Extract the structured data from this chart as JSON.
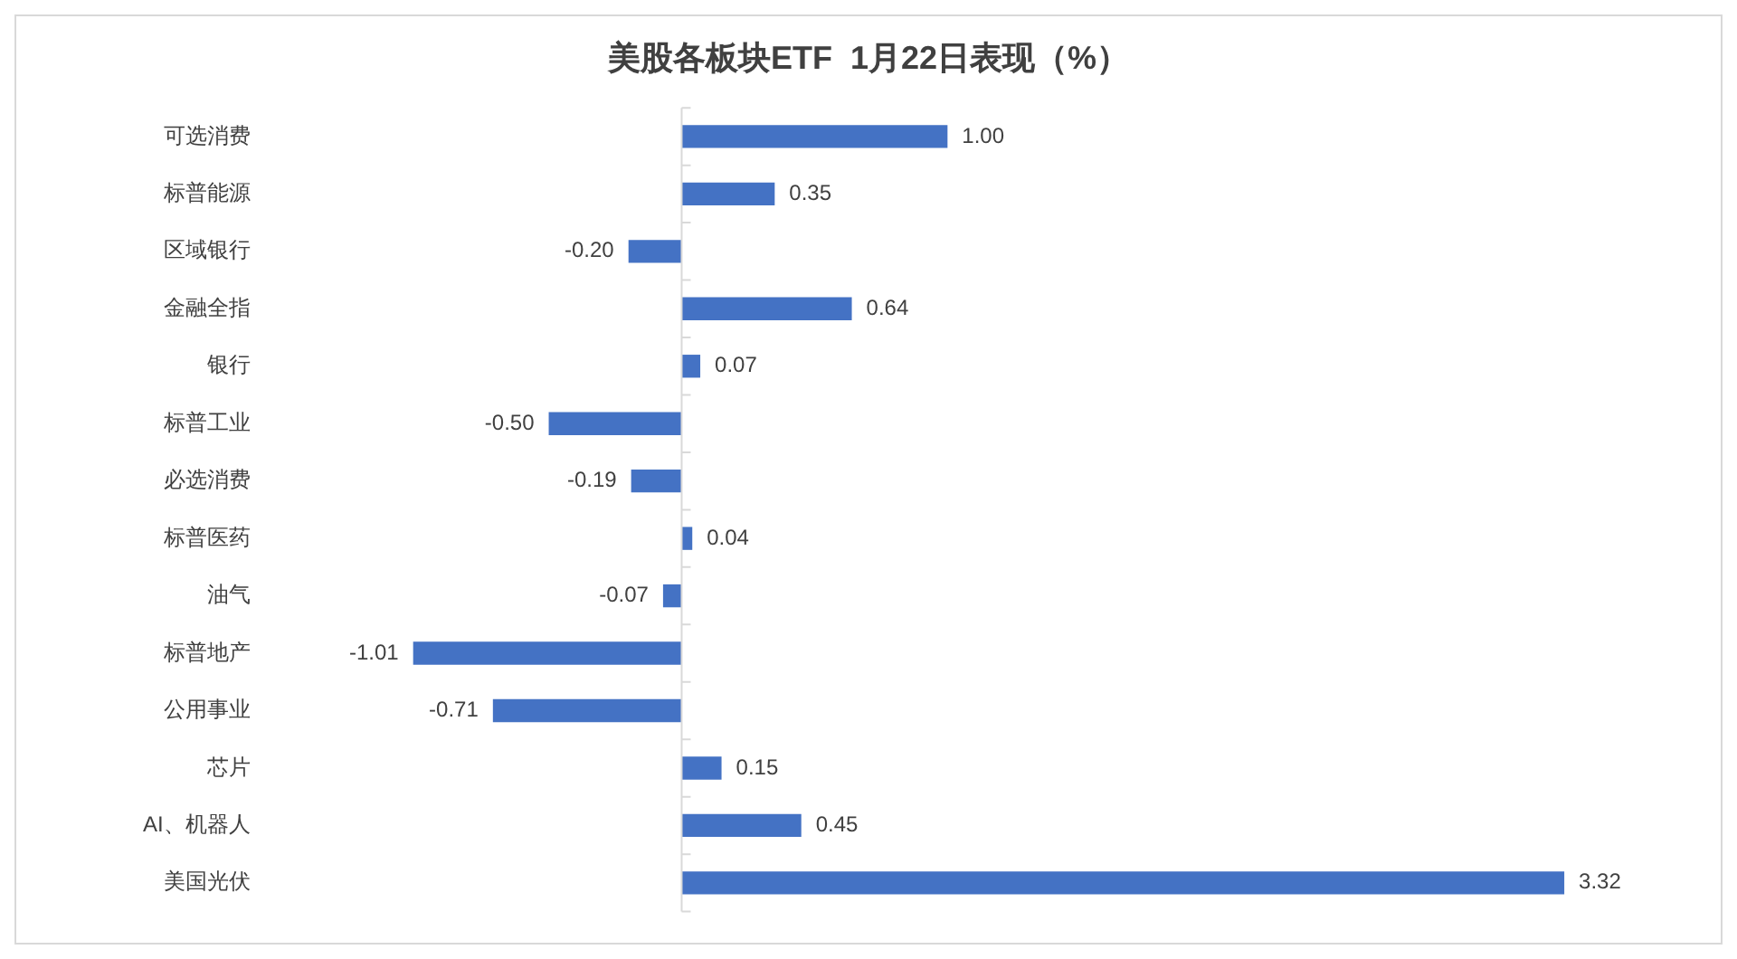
{
  "chart_data": {
    "type": "bar",
    "orientation": "horizontal",
    "title": "美股各板块ETF  1月22日表现（%）",
    "categories": [
      "可选消费",
      "标普能源",
      "区域银行",
      "金融全指",
      "银行",
      "标普工业",
      "必选消费",
      "标普医药",
      "油气",
      "标普地产",
      "公用事业",
      "芯片",
      "AI、机器人",
      "美国光伏"
    ],
    "values": [
      1.0,
      0.35,
      -0.2,
      0.64,
      0.07,
      -0.5,
      -0.19,
      0.04,
      -0.07,
      -1.01,
      -0.71,
      0.15,
      0.45,
      3.32
    ],
    "value_labels": [
      "1.00",
      "0.35",
      "-0.20",
      "0.64",
      "0.07",
      "-0.50",
      "-0.19",
      "0.04",
      "-0.07",
      "-1.01",
      "-0.71",
      "0.15",
      "0.45",
      "3.32"
    ],
    "color": "#4472c4",
    "legend": false,
    "tick_labels": "y"
  }
}
